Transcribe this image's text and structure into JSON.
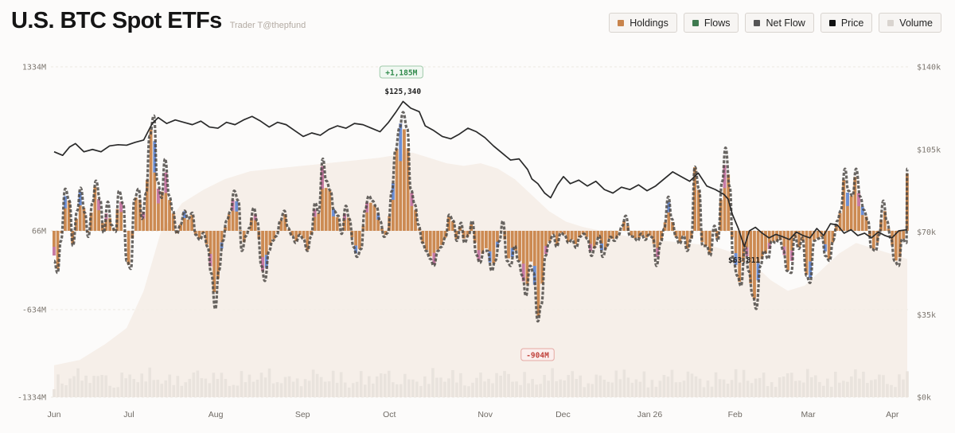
{
  "header": {
    "title": "U.S. BTC Spot ETFs",
    "subtitle": "Trader T@thepfund"
  },
  "legend": [
    {
      "label": "Holdings",
      "color": "#c8844c"
    },
    {
      "label": "Flows",
      "color": "#3f7a4f"
    },
    {
      "label": "Net Flow",
      "color": "#555555"
    },
    {
      "label": "Price",
      "color": "#111111"
    },
    {
      "label": "Volume",
      "color": "#d9d4cf"
    }
  ],
  "chart_data": {
    "type": "bar",
    "left_axis": {
      "ticks": [
        "1334M",
        "66M",
        "-634M",
        "-1334M"
      ],
      "values": [
        1334,
        66,
        -634,
        -1334
      ],
      "range": [
        -1334,
        1334
      ]
    },
    "right_axis": {
      "ticks": [
        "$140k",
        "$105k",
        "$70k",
        "$35k",
        "$0k"
      ],
      "values": [
        140000,
        105000,
        70000,
        35000,
        0
      ],
      "range": [
        0,
        140000
      ]
    },
    "months": [
      "Jun",
      "Jul",
      "Aug",
      "Sep",
      "Oct",
      "Nov",
      "Dec",
      "Jan 26",
      "Feb",
      "Mar",
      "Apr"
    ],
    "month_positions": [
      0.0,
      0.0877,
      0.1895,
      0.2912,
      0.393,
      0.5053,
      0.5965,
      0.6982,
      0.7982,
      0.8839,
      0.9825
    ],
    "annotations": {
      "max_flow": {
        "label": "+1,185M",
        "value": 1185,
        "x": 0.407,
        "color": "#2f8a4a"
      },
      "min_flow": {
        "label": "-904M",
        "value": -904,
        "x": 0.5667,
        "color": "#c0413b"
      },
      "max_price": {
        "label": "$125,340",
        "value": 125340,
        "x": 0.4088
      },
      "min_price": {
        "label": "$63,811",
        "value": 63811,
        "x": 0.8088
      }
    },
    "price": [
      [
        0.0,
        104000
      ],
      [
        0.01,
        102500
      ],
      [
        0.018,
        106000
      ],
      [
        0.025,
        107500
      ],
      [
        0.035,
        104000
      ],
      [
        0.045,
        105000
      ],
      [
        0.055,
        104000
      ],
      [
        0.065,
        106500
      ],
      [
        0.075,
        107000
      ],
      [
        0.085,
        106800
      ],
      [
        0.095,
        108000
      ],
      [
        0.105,
        109000
      ],
      [
        0.115,
        116000
      ],
      [
        0.122,
        118500
      ],
      [
        0.132,
        116000
      ],
      [
        0.142,
        117500
      ],
      [
        0.152,
        116500
      ],
      [
        0.162,
        115500
      ],
      [
        0.172,
        117000
      ],
      [
        0.182,
        114500
      ],
      [
        0.192,
        114000
      ],
      [
        0.202,
        116500
      ],
      [
        0.212,
        115500
      ],
      [
        0.222,
        117500
      ],
      [
        0.232,
        119000
      ],
      [
        0.242,
        117000
      ],
      [
        0.252,
        114500
      ],
      [
        0.262,
        116500
      ],
      [
        0.272,
        115500
      ],
      [
        0.282,
        113000
      ],
      [
        0.292,
        110500
      ],
      [
        0.302,
        112000
      ],
      [
        0.312,
        111000
      ],
      [
        0.322,
        113500
      ],
      [
        0.332,
        115000
      ],
      [
        0.342,
        114000
      ],
      [
        0.352,
        116000
      ],
      [
        0.362,
        115500
      ],
      [
        0.372,
        114000
      ],
      [
        0.382,
        112500
      ],
      [
        0.392,
        116500
      ],
      [
        0.4,
        120500
      ],
      [
        0.409,
        125340
      ],
      [
        0.418,
        122500
      ],
      [
        0.428,
        121000
      ],
      [
        0.435,
        115000
      ],
      [
        0.445,
        113000
      ],
      [
        0.455,
        110500
      ],
      [
        0.465,
        109500
      ],
      [
        0.475,
        111500
      ],
      [
        0.485,
        114000
      ],
      [
        0.495,
        112500
      ],
      [
        0.505,
        110000
      ],
      [
        0.515,
        106500
      ],
      [
        0.525,
        103500
      ],
      [
        0.535,
        100500
      ],
      [
        0.545,
        101000
      ],
      [
        0.555,
        96500
      ],
      [
        0.56,
        92500
      ],
      [
        0.567,
        90500
      ],
      [
        0.575,
        86500
      ],
      [
        0.582,
        84500
      ],
      [
        0.59,
        90000
      ],
      [
        0.597,
        93500
      ],
      [
        0.605,
        90500
      ],
      [
        0.615,
        92000
      ],
      [
        0.625,
        89500
      ],
      [
        0.635,
        91500
      ],
      [
        0.645,
        88000
      ],
      [
        0.655,
        86500
      ],
      [
        0.665,
        89000
      ],
      [
        0.675,
        88000
      ],
      [
        0.685,
        90000
      ],
      [
        0.695,
        87500
      ],
      [
        0.705,
        89500
      ],
      [
        0.715,
        92500
      ],
      [
        0.725,
        95500
      ],
      [
        0.735,
        93500
      ],
      [
        0.745,
        91500
      ],
      [
        0.755,
        95000
      ],
      [
        0.765,
        89500
      ],
      [
        0.775,
        88000
      ],
      [
        0.785,
        86000
      ],
      [
        0.79,
        84000
      ],
      [
        0.795,
        77500
      ],
      [
        0.802,
        71500
      ],
      [
        0.809,
        63811
      ],
      [
        0.815,
        70500
      ],
      [
        0.822,
        72000
      ],
      [
        0.83,
        69500
      ],
      [
        0.838,
        67500
      ],
      [
        0.846,
        69000
      ],
      [
        0.854,
        68000
      ],
      [
        0.862,
        66800
      ],
      [
        0.87,
        70000
      ],
      [
        0.878,
        68500
      ],
      [
        0.886,
        67500
      ],
      [
        0.894,
        71500
      ],
      [
        0.902,
        68500
      ],
      [
        0.91,
        73500
      ],
      [
        0.918,
        73000
      ],
      [
        0.926,
        69500
      ],
      [
        0.934,
        71000
      ],
      [
        0.942,
        68500
      ],
      [
        0.95,
        69500
      ],
      [
        0.958,
        67500
      ],
      [
        0.966,
        70000
      ],
      [
        0.974,
        68500
      ],
      [
        0.982,
        67500
      ],
      [
        0.99,
        70500
      ],
      [
        1.0,
        71000
      ]
    ],
    "net_flow": [
      [
        0.0,
        -300
      ],
      [
        0.004,
        -420
      ],
      [
        0.008,
        -100
      ],
      [
        0.013,
        420
      ],
      [
        0.018,
        300
      ],
      [
        0.022,
        -150
      ],
      [
        0.027,
        200
      ],
      [
        0.031,
        430
      ],
      [
        0.036,
        180
      ],
      [
        0.04,
        -60
      ],
      [
        0.045,
        280
      ],
      [
        0.049,
        500
      ],
      [
        0.054,
        310
      ],
      [
        0.058,
        -20
      ],
      [
        0.063,
        290
      ],
      [
        0.067,
        60
      ],
      [
        0.072,
        -10
      ],
      [
        0.076,
        400
      ],
      [
        0.081,
        270
      ],
      [
        0.085,
        -300
      ],
      [
        0.09,
        -380
      ],
      [
        0.094,
        310
      ],
      [
        0.099,
        420
      ],
      [
        0.103,
        120
      ],
      [
        0.108,
        380
      ],
      [
        0.112,
        950
      ],
      [
        0.117,
        1150
      ],
      [
        0.121,
        500
      ],
      [
        0.126,
        330
      ],
      [
        0.13,
        720
      ],
      [
        0.135,
        350
      ],
      [
        0.139,
        210
      ],
      [
        0.144,
        -30
      ],
      [
        0.148,
        60
      ],
      [
        0.153,
        200
      ],
      [
        0.157,
        120
      ],
      [
        0.162,
        180
      ],
      [
        0.166,
        -40
      ],
      [
        0.171,
        -90
      ],
      [
        0.175,
        -20
      ],
      [
        0.18,
        -160
      ],
      [
        0.184,
        -420
      ],
      [
        0.189,
        -780
      ],
      [
        0.193,
        -400
      ],
      [
        0.198,
        -100
      ],
      [
        0.202,
        100
      ],
      [
        0.207,
        200
      ],
      [
        0.211,
        400
      ],
      [
        0.216,
        300
      ],
      [
        0.22,
        -200
      ],
      [
        0.225,
        -50
      ],
      [
        0.229,
        30
      ],
      [
        0.234,
        230
      ],
      [
        0.238,
        100
      ],
      [
        0.243,
        -350
      ],
      [
        0.247,
        -500
      ],
      [
        0.252,
        -200
      ],
      [
        0.256,
        -100
      ],
      [
        0.261,
        -50
      ],
      [
        0.265,
        100
      ],
      [
        0.27,
        200
      ],
      [
        0.274,
        30
      ],
      [
        0.279,
        -50
      ],
      [
        0.283,
        -120
      ],
      [
        0.288,
        -40
      ],
      [
        0.292,
        -80
      ],
      [
        0.297,
        -200
      ],
      [
        0.301,
        -60
      ],
      [
        0.306,
        280
      ],
      [
        0.31,
        180
      ],
      [
        0.315,
        720
      ],
      [
        0.319,
        500
      ],
      [
        0.324,
        400
      ],
      [
        0.328,
        200
      ],
      [
        0.333,
        150
      ],
      [
        0.337,
        -30
      ],
      [
        0.342,
        250
      ],
      [
        0.346,
        120
      ],
      [
        0.351,
        -160
      ],
      [
        0.355,
        -260
      ],
      [
        0.36,
        -180
      ],
      [
        0.364,
        200
      ],
      [
        0.369,
        350
      ],
      [
        0.373,
        300
      ],
      [
        0.378,
        240
      ],
      [
        0.382,
        100
      ],
      [
        0.387,
        -60
      ],
      [
        0.391,
        -20
      ],
      [
        0.396,
        400
      ],
      [
        0.4,
        800
      ],
      [
        0.405,
        1030
      ],
      [
        0.409,
        1185
      ],
      [
        0.414,
        1020
      ],
      [
        0.418,
        420
      ],
      [
        0.423,
        260
      ],
      [
        0.427,
        60
      ],
      [
        0.432,
        -120
      ],
      [
        0.436,
        -200
      ],
      [
        0.441,
        -280
      ],
      [
        0.445,
        -350
      ],
      [
        0.45,
        -200
      ],
      [
        0.454,
        -160
      ],
      [
        0.459,
        -60
      ],
      [
        0.463,
        160
      ],
      [
        0.468,
        100
      ],
      [
        0.472,
        -100
      ],
      [
        0.477,
        80
      ],
      [
        0.481,
        -120
      ],
      [
        0.486,
        -40
      ],
      [
        0.49,
        100
      ],
      [
        0.495,
        -240
      ],
      [
        0.499,
        -320
      ],
      [
        0.504,
        -200
      ],
      [
        0.508,
        -200
      ],
      [
        0.513,
        -400
      ],
      [
        0.517,
        -300
      ],
      [
        0.522,
        -100
      ],
      [
        0.526,
        100
      ],
      [
        0.531,
        -300
      ],
      [
        0.535,
        -350
      ],
      [
        0.54,
        -150
      ],
      [
        0.544,
        -300
      ],
      [
        0.549,
        -450
      ],
      [
        0.553,
        -650
      ],
      [
        0.558,
        -350
      ],
      [
        0.562,
        -420
      ],
      [
        0.567,
        -904
      ],
      [
        0.571,
        -740
      ],
      [
        0.576,
        -250
      ],
      [
        0.58,
        -120
      ],
      [
        0.585,
        -40
      ],
      [
        0.589,
        -160
      ],
      [
        0.594,
        -20
      ],
      [
        0.598,
        -40
      ],
      [
        0.603,
        -120
      ],
      [
        0.607,
        -90
      ],
      [
        0.612,
        -170
      ],
      [
        0.616,
        -60
      ],
      [
        0.621,
        -30
      ],
      [
        0.625,
        -80
      ],
      [
        0.63,
        -250
      ],
      [
        0.634,
        -160
      ],
      [
        0.639,
        -50
      ],
      [
        0.643,
        -260
      ],
      [
        0.648,
        -150
      ],
      [
        0.652,
        -60
      ],
      [
        0.657,
        -100
      ],
      [
        0.661,
        -50
      ],
      [
        0.666,
        50
      ],
      [
        0.67,
        150
      ],
      [
        0.675,
        -50
      ],
      [
        0.679,
        -60
      ],
      [
        0.684,
        -100
      ],
      [
        0.688,
        -30
      ],
      [
        0.693,
        -90
      ],
      [
        0.697,
        -40
      ],
      [
        0.702,
        -70
      ],
      [
        0.706,
        -350
      ],
      [
        0.711,
        -120
      ],
      [
        0.715,
        20
      ],
      [
        0.72,
        340
      ],
      [
        0.724,
        120
      ],
      [
        0.729,
        -60
      ],
      [
        0.733,
        -130
      ],
      [
        0.738,
        -50
      ],
      [
        0.742,
        -200
      ],
      [
        0.747,
        -80
      ],
      [
        0.751,
        640
      ],
      [
        0.756,
        420
      ],
      [
        0.76,
        -150
      ],
      [
        0.765,
        -150
      ],
      [
        0.769,
        -250
      ],
      [
        0.774,
        50
      ],
      [
        0.778,
        -100
      ],
      [
        0.783,
        490
      ],
      [
        0.787,
        830
      ],
      [
        0.792,
        440
      ],
      [
        0.796,
        -300
      ],
      [
        0.801,
        -450
      ],
      [
        0.805,
        -550
      ],
      [
        0.81,
        -160
      ],
      [
        0.814,
        -400
      ],
      [
        0.819,
        -650
      ],
      [
        0.823,
        -780
      ],
      [
        0.828,
        -350
      ],
      [
        0.832,
        -200
      ],
      [
        0.837,
        -280
      ],
      [
        0.841,
        -100
      ],
      [
        0.846,
        -120
      ],
      [
        0.85,
        -70
      ],
      [
        0.855,
        -200
      ],
      [
        0.859,
        -400
      ],
      [
        0.864,
        -420
      ],
      [
        0.868,
        -50
      ],
      [
        0.873,
        -180
      ],
      [
        0.877,
        -70
      ],
      [
        0.882,
        -450
      ],
      [
        0.886,
        -520
      ],
      [
        0.891,
        -100
      ],
      [
        0.895,
        -80
      ],
      [
        0.9,
        -60
      ],
      [
        0.904,
        -250
      ],
      [
        0.909,
        -300
      ],
      [
        0.913,
        -100
      ],
      [
        0.918,
        100
      ],
      [
        0.922,
        200
      ],
      [
        0.927,
        620
      ],
      [
        0.931,
        400
      ],
      [
        0.936,
        350
      ],
      [
        0.94,
        620
      ],
      [
        0.945,
        340
      ],
      [
        0.949,
        210
      ],
      [
        0.954,
        100
      ],
      [
        0.958,
        -180
      ],
      [
        0.963,
        -200
      ],
      [
        0.967,
        -40
      ],
      [
        0.972,
        300
      ],
      [
        0.976,
        100
      ],
      [
        0.981,
        -80
      ],
      [
        0.985,
        -300
      ],
      [
        0.99,
        -350
      ],
      [
        0.994,
        -80
      ],
      [
        0.999,
        -120
      ],
      [
        1.0,
        620
      ]
    ],
    "volume": [
      [
        0.0,
        0.12
      ],
      [
        0.03,
        0.14
      ],
      [
        0.06,
        0.2
      ],
      [
        0.085,
        0.26
      ],
      [
        0.105,
        0.4
      ],
      [
        0.125,
        0.62
      ],
      [
        0.15,
        0.73
      ],
      [
        0.175,
        0.78
      ],
      [
        0.2,
        0.82
      ],
      [
        0.23,
        0.85
      ],
      [
        0.26,
        0.86
      ],
      [
        0.29,
        0.87
      ],
      [
        0.32,
        0.88
      ],
      [
        0.35,
        0.89
      ],
      [
        0.38,
        0.9
      ],
      [
        0.4,
        0.91
      ],
      [
        0.42,
        0.92
      ],
      [
        0.44,
        0.9
      ],
      [
        0.46,
        0.88
      ],
      [
        0.48,
        0.87
      ],
      [
        0.5,
        0.88
      ],
      [
        0.52,
        0.86
      ],
      [
        0.54,
        0.82
      ],
      [
        0.56,
        0.76
      ],
      [
        0.58,
        0.7
      ],
      [
        0.6,
        0.66
      ],
      [
        0.62,
        0.64
      ],
      [
        0.65,
        0.62
      ],
      [
        0.68,
        0.6
      ],
      [
        0.71,
        0.59
      ],
      [
        0.74,
        0.58
      ],
      [
        0.77,
        0.57
      ],
      [
        0.8,
        0.54
      ],
      [
        0.82,
        0.5
      ],
      [
        0.84,
        0.44
      ],
      [
        0.86,
        0.4
      ],
      [
        0.88,
        0.42
      ],
      [
        0.9,
        0.48
      ],
      [
        0.92,
        0.54
      ],
      [
        0.94,
        0.58
      ],
      [
        0.96,
        0.56
      ],
      [
        0.98,
        0.54
      ],
      [
        1.0,
        0.52
      ]
    ]
  }
}
